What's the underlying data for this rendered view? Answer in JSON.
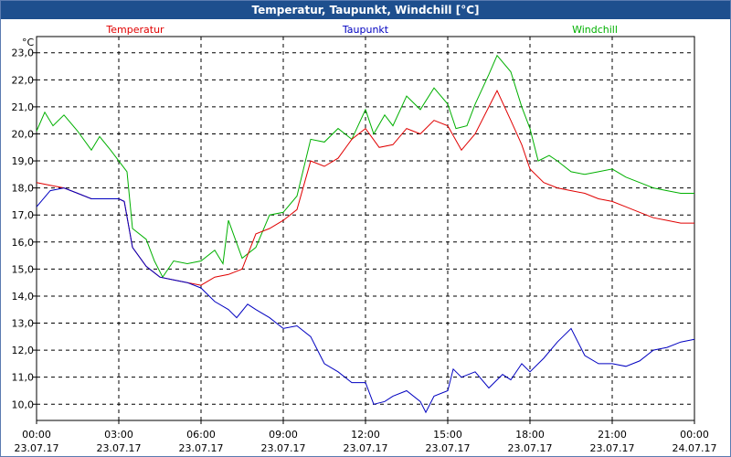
{
  "chart_data": {
    "type": "line",
    "title": "Temperatur, Taupunkt, Windchill [°C]",
    "ylabel": "°C",
    "xlabel": "",
    "ylim": [
      9.4,
      23.6
    ],
    "xlim": [
      0,
      24
    ],
    "grid": true,
    "legend_placement": "top",
    "y_ticks": [
      "10,0",
      "11,0",
      "12,0",
      "13,0",
      "14,0",
      "15,0",
      "16,0",
      "17,0",
      "18,0",
      "19,0",
      "20,0",
      "21,0",
      "22,0",
      "23,0"
    ],
    "y_tick_values": [
      10,
      11,
      12,
      13,
      14,
      15,
      16,
      17,
      18,
      19,
      20,
      21,
      22,
      23
    ],
    "x_ticks": [
      {
        "time": "00:00",
        "date": "23.07.17"
      },
      {
        "time": "03:00",
        "date": "23.07.17"
      },
      {
        "time": "06:00",
        "date": "23.07.17"
      },
      {
        "time": "09:00",
        "date": "23.07.17"
      },
      {
        "time": "12:00",
        "date": "23.07.17"
      },
      {
        "time": "15:00",
        "date": "23.07.17"
      },
      {
        "time": "18:00",
        "date": "23.07.17"
      },
      {
        "time": "21:00",
        "date": "23.07.17"
      },
      {
        "time": "00:00",
        "date": "24.07.17"
      }
    ],
    "series": [
      {
        "name": "Temperatur",
        "color": "#e00000",
        "points": [
          [
            0,
            18.2
          ],
          [
            0.5,
            18.1
          ],
          [
            1,
            18.0
          ],
          [
            1.5,
            17.8
          ],
          [
            2,
            17.6
          ],
          [
            2.5,
            17.6
          ],
          [
            3,
            17.6
          ],
          [
            3.2,
            17.5
          ],
          [
            3.5,
            15.8
          ],
          [
            4,
            15.1
          ],
          [
            4.5,
            14.7
          ],
          [
            5,
            14.6
          ],
          [
            5.5,
            14.5
          ],
          [
            6,
            14.4
          ],
          [
            6.5,
            14.7
          ],
          [
            7,
            14.8
          ],
          [
            7.5,
            15.0
          ],
          [
            8,
            16.3
          ],
          [
            8.5,
            16.5
          ],
          [
            9,
            16.8
          ],
          [
            9.5,
            17.2
          ],
          [
            10,
            19.0
          ],
          [
            10.5,
            18.8
          ],
          [
            11,
            19.1
          ],
          [
            11.5,
            19.8
          ],
          [
            12,
            20.2
          ],
          [
            12.5,
            19.5
          ],
          [
            13,
            19.6
          ],
          [
            13.5,
            20.2
          ],
          [
            14,
            20.0
          ],
          [
            14.5,
            20.5
          ],
          [
            15,
            20.3
          ],
          [
            15.5,
            19.4
          ],
          [
            16,
            20.0
          ],
          [
            16.5,
            21.0
          ],
          [
            16.8,
            21.6
          ],
          [
            17.3,
            20.5
          ],
          [
            17.7,
            19.6
          ],
          [
            18,
            18.7
          ],
          [
            18.5,
            18.2
          ],
          [
            19,
            18.0
          ],
          [
            19.5,
            17.9
          ],
          [
            20,
            17.8
          ],
          [
            20.5,
            17.6
          ],
          [
            21,
            17.5
          ],
          [
            21.5,
            17.3
          ],
          [
            22,
            17.1
          ],
          [
            22.5,
            16.9
          ],
          [
            23,
            16.8
          ],
          [
            23.5,
            16.7
          ],
          [
            24,
            16.7
          ]
        ]
      },
      {
        "name": "Taupunkt",
        "color": "#0000c0",
        "points": [
          [
            0,
            17.3
          ],
          [
            0.5,
            17.9
          ],
          [
            1,
            18.0
          ],
          [
            1.5,
            17.8
          ],
          [
            2,
            17.6
          ],
          [
            2.5,
            17.6
          ],
          [
            3,
            17.6
          ],
          [
            3.2,
            17.5
          ],
          [
            3.5,
            15.8
          ],
          [
            4,
            15.1
          ],
          [
            4.5,
            14.7
          ],
          [
            5,
            14.6
          ],
          [
            5.5,
            14.5
          ],
          [
            6,
            14.3
          ],
          [
            6.5,
            13.8
          ],
          [
            7,
            13.5
          ],
          [
            7.3,
            13.2
          ],
          [
            7.7,
            13.7
          ],
          [
            8,
            13.5
          ],
          [
            8.5,
            13.2
          ],
          [
            9,
            12.8
          ],
          [
            9.5,
            12.9
          ],
          [
            10,
            12.5
          ],
          [
            10.5,
            11.5
          ],
          [
            11,
            11.2
          ],
          [
            11.5,
            10.8
          ],
          [
            12,
            10.8
          ],
          [
            12.3,
            10.0
          ],
          [
            12.7,
            10.1
          ],
          [
            13,
            10.3
          ],
          [
            13.5,
            10.5
          ],
          [
            14,
            10.1
          ],
          [
            14.2,
            9.7
          ],
          [
            14.5,
            10.3
          ],
          [
            15,
            10.5
          ],
          [
            15.2,
            11.3
          ],
          [
            15.5,
            11.0
          ],
          [
            16,
            11.2
          ],
          [
            16.5,
            10.6
          ],
          [
            17,
            11.1
          ],
          [
            17.3,
            10.9
          ],
          [
            17.7,
            11.5
          ],
          [
            18,
            11.2
          ],
          [
            18.5,
            11.7
          ],
          [
            19,
            12.3
          ],
          [
            19.5,
            12.8
          ],
          [
            20,
            11.8
          ],
          [
            20.5,
            11.5
          ],
          [
            21,
            11.5
          ],
          [
            21.5,
            11.4
          ],
          [
            22,
            11.6
          ],
          [
            22.5,
            12.0
          ],
          [
            23,
            12.1
          ],
          [
            23.5,
            12.3
          ],
          [
            24,
            12.4
          ]
        ]
      },
      {
        "name": "Windchill",
        "color": "#00b000",
        "points": [
          [
            0,
            20.1
          ],
          [
            0.3,
            20.8
          ],
          [
            0.6,
            20.3
          ],
          [
            1,
            20.7
          ],
          [
            1.5,
            20.1
          ],
          [
            2,
            19.4
          ],
          [
            2.3,
            19.9
          ],
          [
            2.7,
            19.4
          ],
          [
            3,
            19.0
          ],
          [
            3.3,
            18.6
          ],
          [
            3.5,
            16.5
          ],
          [
            4,
            16.1
          ],
          [
            4.3,
            15.3
          ],
          [
            4.6,
            14.7
          ],
          [
            5,
            15.3
          ],
          [
            5.5,
            15.2
          ],
          [
            6,
            15.3
          ],
          [
            6.5,
            15.7
          ],
          [
            6.8,
            15.2
          ],
          [
            7,
            16.8
          ],
          [
            7.5,
            15.4
          ],
          [
            8,
            15.8
          ],
          [
            8.5,
            17.0
          ],
          [
            9,
            17.1
          ],
          [
            9.5,
            17.7
          ],
          [
            10,
            19.8
          ],
          [
            10.5,
            19.7
          ],
          [
            11,
            20.2
          ],
          [
            11.5,
            19.8
          ],
          [
            12,
            20.9
          ],
          [
            12.3,
            20.0
          ],
          [
            12.7,
            20.7
          ],
          [
            13,
            20.3
          ],
          [
            13.5,
            21.4
          ],
          [
            14,
            20.9
          ],
          [
            14.5,
            21.7
          ],
          [
            15,
            21.1
          ],
          [
            15.3,
            20.2
          ],
          [
            15.7,
            20.3
          ],
          [
            16,
            21.1
          ],
          [
            16.5,
            22.2
          ],
          [
            16.8,
            22.9
          ],
          [
            17.3,
            22.3
          ],
          [
            17.7,
            21.0
          ],
          [
            18,
            20.2
          ],
          [
            18.3,
            19.0
          ],
          [
            18.7,
            19.2
          ],
          [
            19,
            19.0
          ],
          [
            19.5,
            18.6
          ],
          [
            20,
            18.5
          ],
          [
            20.5,
            18.6
          ],
          [
            21,
            18.7
          ],
          [
            21.5,
            18.4
          ],
          [
            22,
            18.2
          ],
          [
            22.5,
            18.0
          ],
          [
            23,
            17.9
          ],
          [
            23.5,
            17.8
          ],
          [
            24,
            17.8
          ]
        ]
      }
    ]
  }
}
